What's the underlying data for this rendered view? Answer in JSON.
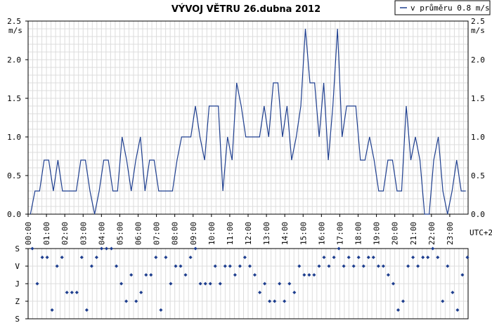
{
  "chart_data": [
    {
      "type": "line",
      "title": "VÝVOJ VĚTRU  26.dubna 2012",
      "ylabel": "m/s",
      "xlabel": "UTC+2",
      "ylim": [
        0,
        2.5
      ],
      "yticks": [
        "0.0",
        "0.5",
        "1.0",
        "1.5",
        "2.0",
        "2.5"
      ],
      "xticks": [
        "00:00",
        "01:00",
        "02:00",
        "03:00",
        "04:00",
        "05:00",
        "06:00",
        "07:00",
        "08:00",
        "09:00",
        "10:00",
        "11:00",
        "12:00",
        "13:00",
        "14:00",
        "15:00",
        "16:00",
        "17:00",
        "18:00",
        "19:00",
        "20:00",
        "21:00",
        "22:00",
        "23:00"
      ],
      "grid": true,
      "legend": {
        "placement": "top-right",
        "text": "v průměru 0.8 m/s"
      },
      "series": [
        {
          "color": "#1f3f8f",
          "values": [
            0.0,
            0.3,
            0.3,
            0.7,
            0.7,
            0.3,
            0.7,
            0.3,
            0.3,
            0.3,
            0.3,
            0.7,
            0.7,
            0.3,
            0.0,
            0.3,
            0.7,
            0.7,
            0.3,
            0.3,
            1.0,
            0.7,
            0.3,
            0.7,
            1.0,
            0.3,
            0.7,
            0.7,
            0.3,
            0.3,
            0.3,
            0.3,
            0.7,
            1.0,
            1.0,
            1.0,
            1.4,
            1.0,
            0.7,
            1.4,
            1.4,
            1.4,
            0.3,
            1.0,
            0.7,
            1.7,
            1.4,
            1.0,
            1.0,
            1.0,
            1.0,
            1.4,
            1.0,
            1.7,
            1.7,
            1.0,
            1.4,
            0.7,
            1.0,
            1.4,
            2.4,
            1.7,
            1.7,
            1.0,
            1.7,
            0.7,
            1.4,
            2.4,
            1.0,
            1.4,
            1.4,
            1.4,
            0.7,
            0.7,
            1.0,
            0.7,
            0.3,
            0.3,
            0.7,
            0.7,
            0.3,
            0.3,
            1.4,
            0.7,
            1.0,
            0.7,
            0.0,
            0.0,
            0.7,
            1.0,
            0.3,
            0.0,
            0.3,
            0.7,
            0.3,
            0.3
          ]
        }
      ]
    },
    {
      "type": "scatter",
      "yticks": [
        "S",
        "V",
        "J",
        "Z",
        "S"
      ],
      "ylim": [
        0,
        360
      ],
      "direction_ticks_deg": [
        0,
        90,
        180,
        270,
        360
      ],
      "color": "#1f3f8f",
      "values_deg": [
        0,
        180,
        45,
        45,
        315,
        90,
        45,
        225,
        225,
        225,
        45,
        315,
        90,
        45,
        0,
        0,
        0,
        90,
        180,
        270,
        135,
        270,
        225,
        135,
        135,
        45,
        315,
        45,
        180,
        90,
        90,
        135,
        45,
        0,
        180,
        180,
        180,
        90,
        180,
        90,
        90,
        135,
        90,
        45,
        90,
        135,
        225,
        180,
        270,
        270,
        180,
        270,
        180,
        225,
        90,
        135,
        135,
        135,
        90,
        45,
        90,
        45,
        0,
        90,
        45,
        90,
        45,
        90,
        45,
        45,
        90,
        90,
        135,
        180,
        315,
        270,
        90,
        45,
        90,
        45,
        45,
        0,
        45,
        270,
        90,
        225,
        315,
        135,
        45
      ]
    }
  ]
}
